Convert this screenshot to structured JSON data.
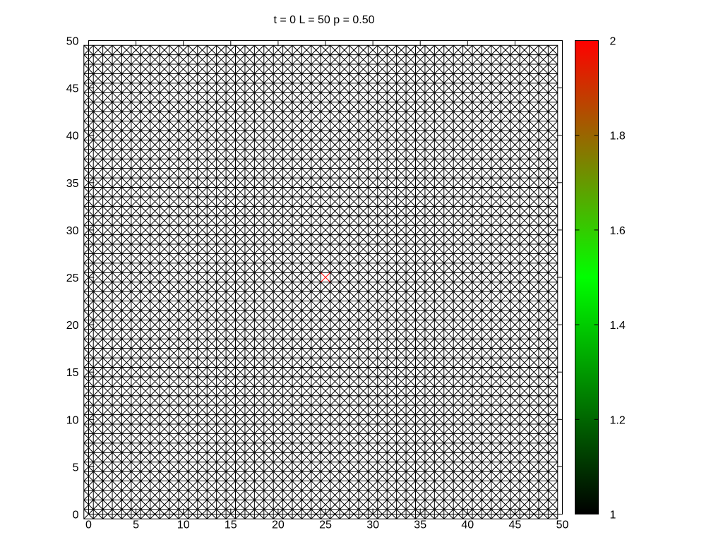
{
  "chart_data": {
    "type": "scatter",
    "title": "t = 0 L = 50 p = 0.50",
    "xlabel": "",
    "ylabel": "",
    "xlim": [
      0,
      50
    ],
    "ylim": [
      0,
      50
    ],
    "x_ticks": [
      0,
      5,
      10,
      15,
      20,
      25,
      30,
      35,
      40,
      45,
      50
    ],
    "y_ticks": [
      0,
      5,
      10,
      15,
      20,
      25,
      30,
      35,
      40,
      45,
      50
    ],
    "marker": "x-in-box",
    "lattice": {
      "size": 50,
      "x_values": "0..49",
      "y_values": "0..49",
      "value": 1,
      "color": "#000000"
    },
    "highlight_points": [
      {
        "x": 25,
        "y": 25,
        "value": 2,
        "color": "#ff0000"
      }
    ],
    "grid": false,
    "colorbar": {
      "range": [
        1,
        2
      ],
      "ticks": [
        "1",
        "1.2",
        "1.4",
        "1.6",
        "1.8",
        "2"
      ],
      "colors": [
        "#000000",
        "#00ff00",
        "#ff0000"
      ]
    }
  }
}
